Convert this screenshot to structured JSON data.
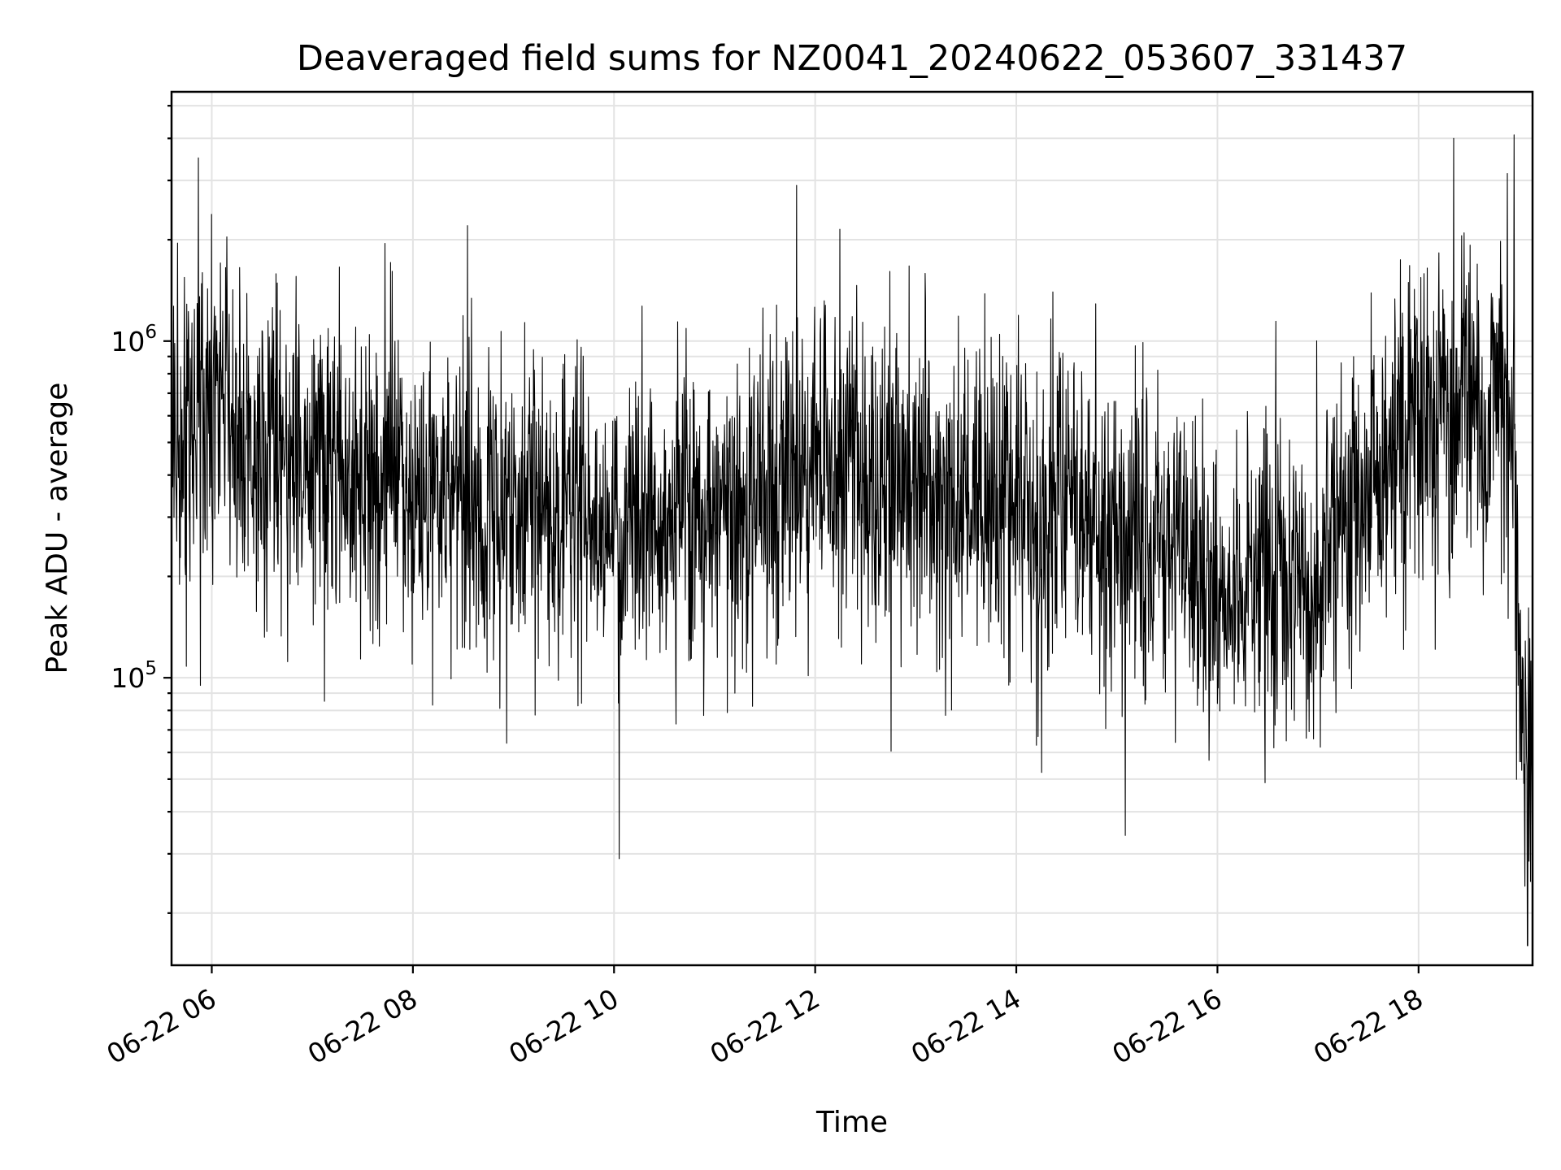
{
  "chart_data": {
    "type": "line",
    "title": "Deaveraged field sums for NZ0041_20240622_053607_331437",
    "xlabel": "Time",
    "ylabel": "Peak ADU - average",
    "x_range": [
      "2024-06-22T05:36",
      "2024-06-22T19:08"
    ],
    "xticks": [
      {
        "value": "2024-06-22T06:00",
        "label": "06-22 06"
      },
      {
        "value": "2024-06-22T08:00",
        "label": "06-22 08"
      },
      {
        "value": "2024-06-22T10:00",
        "label": "06-22 10"
      },
      {
        "value": "2024-06-22T12:00",
        "label": "06-22 12"
      },
      {
        "value": "2024-06-22T14:00",
        "label": "06-22 14"
      },
      {
        "value": "2024-06-22T16:00",
        "label": "06-22 16"
      },
      {
        "value": "2024-06-22T18:00",
        "label": "06-22 18"
      }
    ],
    "y_scale": "log",
    "ylim": [
      14000,
      5500000
    ],
    "yticks": [
      {
        "value": 100000,
        "base": "10",
        "exp": "5"
      },
      {
        "value": 1000000,
        "base": "10",
        "exp": "6"
      }
    ],
    "grid": true,
    "series": [
      {
        "color": "#000000",
        "points": [
          [
            "2024-06-22T05:36",
            400000
          ],
          [
            "2024-06-22T05:48",
            500000
          ],
          [
            "2024-06-22T06:00",
            700000
          ],
          [
            "2024-06-22T06:30",
            480000
          ],
          [
            "2024-06-22T07:00",
            430000
          ],
          [
            "2024-06-22T07:30",
            380000
          ],
          [
            "2024-06-22T08:00",
            340000
          ],
          [
            "2024-06-22T08:30",
            320000
          ],
          [
            "2024-06-22T09:00",
            290000
          ],
          [
            "2024-06-22T09:30",
            300000
          ],
          [
            "2024-06-22T10:00",
            280000
          ],
          [
            "2024-06-22T10:30",
            300000
          ],
          [
            "2024-06-22T11:00",
            310000
          ],
          [
            "2024-06-22T11:30",
            360000
          ],
          [
            "2024-06-22T12:00",
            420000
          ],
          [
            "2024-06-22T12:30",
            370000
          ],
          [
            "2024-06-22T13:00",
            380000
          ],
          [
            "2024-06-22T13:30",
            350000
          ],
          [
            "2024-06-22T14:00",
            340000
          ],
          [
            "2024-06-22T14:30",
            320000
          ],
          [
            "2024-06-22T15:00",
            280000
          ],
          [
            "2024-06-22T15:30",
            230000
          ],
          [
            "2024-06-22T16:00",
            200000
          ],
          [
            "2024-06-22T16:30",
            190000
          ],
          [
            "2024-06-22T17:00",
            220000
          ],
          [
            "2024-06-22T17:30",
            380000
          ],
          [
            "2024-06-22T18:00",
            560000
          ],
          [
            "2024-06-22T18:30",
            650000
          ],
          [
            "2024-06-22T18:55",
            750000
          ],
          [
            "2024-06-22T19:01",
            80000
          ],
          [
            "2024-06-22T19:06",
            60000
          ]
        ]
      }
    ],
    "extremes": [
      {
        "x": "2024-06-22T05:52",
        "y": 3500000
      },
      {
        "x": "2024-06-22T10:03",
        "y": 29000
      },
      {
        "x": "2024-06-22T11:49",
        "y": 2900000
      },
      {
        "x": "2024-06-22T15:05",
        "y": 34000
      },
      {
        "x": "2024-06-22T18:21",
        "y": 4000000
      },
      {
        "x": "2024-06-22T18:57",
        "y": 4100000
      },
      {
        "x": "2024-06-22T19:05",
        "y": 16000
      }
    ]
  }
}
